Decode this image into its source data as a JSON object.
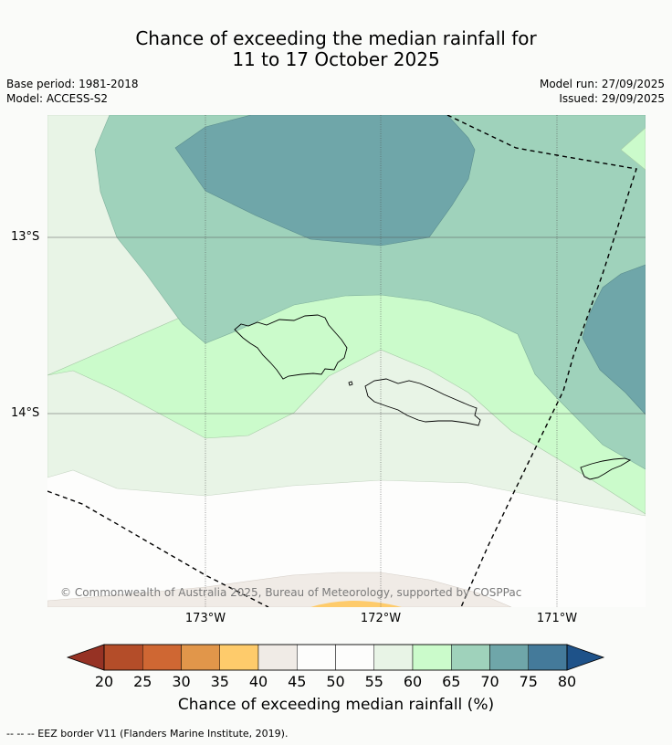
{
  "title": {
    "line1": "Chance of exceeding the median rainfall for",
    "line2": "11 to 17 October 2025"
  },
  "meta_left": {
    "base_period": "Base period: 1981-2018",
    "model": "Model: ACCESS-S2"
  },
  "meta_right": {
    "model_run": "Model run: 27/09/2025",
    "issued": "Issued: 29/09/2025"
  },
  "map": {
    "lat_labels": [
      "13°S",
      "14°S"
    ],
    "lon_labels": [
      "173°W",
      "172°W",
      "171°W"
    ],
    "copyright": "© Commonwealth of Australia 2025, Bureau of Meteorology, supported by COSPPac",
    "colors": {
      "c30_35": "#e1964a",
      "c35_40": "#fecb6b",
      "c40_45": "#f0ebe6",
      "c45_55": "#fdfdfc",
      "c55_60": "#e8f4e6",
      "c60_65": "#cbfbcb",
      "c65_70": "#9fd2bb",
      "c70_75": "#6fa6a9"
    }
  },
  "colorbar": {
    "ticks": [
      "20",
      "25",
      "30",
      "35",
      "40",
      "45",
      "50",
      "55",
      "60",
      "65",
      "70",
      "75",
      "80"
    ],
    "label": "Chance of exceeding median rainfall (%)",
    "low_extend_color": "#963224",
    "high_extend_color": "#1e5289",
    "colors": [
      "#b44d29",
      "#cf6733",
      "#e1964a",
      "#fecb6b",
      "#f0ebe6",
      "#fdfdfc",
      "#fdfdfc",
      "#e8f4e6",
      "#cbfbcb",
      "#9fd2bb",
      "#6fa6a9",
      "#447a9a"
    ]
  },
  "footer": "--  --  -- EEZ border V11 (Flanders Marine Institute, 2019)."
}
